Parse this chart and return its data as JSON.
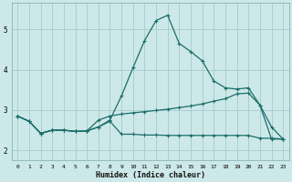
{
  "xlabel": "Humidex (Indice chaleur)",
  "xlim": [
    -0.5,
    23.5
  ],
  "ylim": [
    1.75,
    5.65
  ],
  "xticks": [
    0,
    1,
    2,
    3,
    4,
    5,
    6,
    7,
    8,
    9,
    10,
    11,
    12,
    13,
    14,
    15,
    16,
    17,
    18,
    19,
    20,
    21,
    22,
    23
  ],
  "yticks": [
    2,
    3,
    4,
    5
  ],
  "background_color": "#cde8e8",
  "grid_color": "#a8d0d0",
  "line_color": "#1a6e6a",
  "line1_x": [
    0,
    1,
    2,
    3,
    4,
    5,
    6,
    7,
    8,
    9,
    10,
    11,
    12,
    13,
    14,
    15,
    16,
    17,
    18,
    19,
    20,
    21,
    22,
    23
  ],
  "line1_y": [
    2.85,
    2.72,
    2.42,
    2.5,
    2.5,
    2.47,
    2.48,
    2.58,
    2.75,
    3.35,
    4.05,
    4.72,
    5.22,
    5.35,
    4.65,
    4.45,
    4.22,
    3.72,
    3.55,
    3.52,
    3.55,
    3.12,
    2.58,
    2.28
  ],
  "line2_x": [
    0,
    1,
    2,
    3,
    4,
    5,
    6,
    7,
    8,
    9,
    10,
    11,
    12,
    13,
    14,
    15,
    16,
    17,
    18,
    19,
    20,
    21,
    22,
    23
  ],
  "line2_y": [
    2.85,
    2.72,
    2.42,
    2.5,
    2.5,
    2.47,
    2.48,
    2.75,
    2.85,
    2.9,
    2.93,
    2.96,
    2.99,
    3.02,
    3.06,
    3.1,
    3.15,
    3.22,
    3.28,
    3.4,
    3.42,
    3.12,
    2.28,
    2.28
  ],
  "line3_x": [
    0,
    1,
    2,
    3,
    4,
    5,
    6,
    7,
    8,
    9,
    10,
    11,
    12,
    13,
    14,
    15,
    16,
    17,
    18,
    19,
    20,
    21,
    22,
    23
  ],
  "line3_y": [
    2.85,
    2.72,
    2.42,
    2.5,
    2.5,
    2.47,
    2.48,
    2.58,
    2.72,
    2.4,
    2.4,
    2.38,
    2.38,
    2.37,
    2.37,
    2.37,
    2.37,
    2.37,
    2.37,
    2.37,
    2.37,
    2.3,
    2.3,
    2.28
  ]
}
